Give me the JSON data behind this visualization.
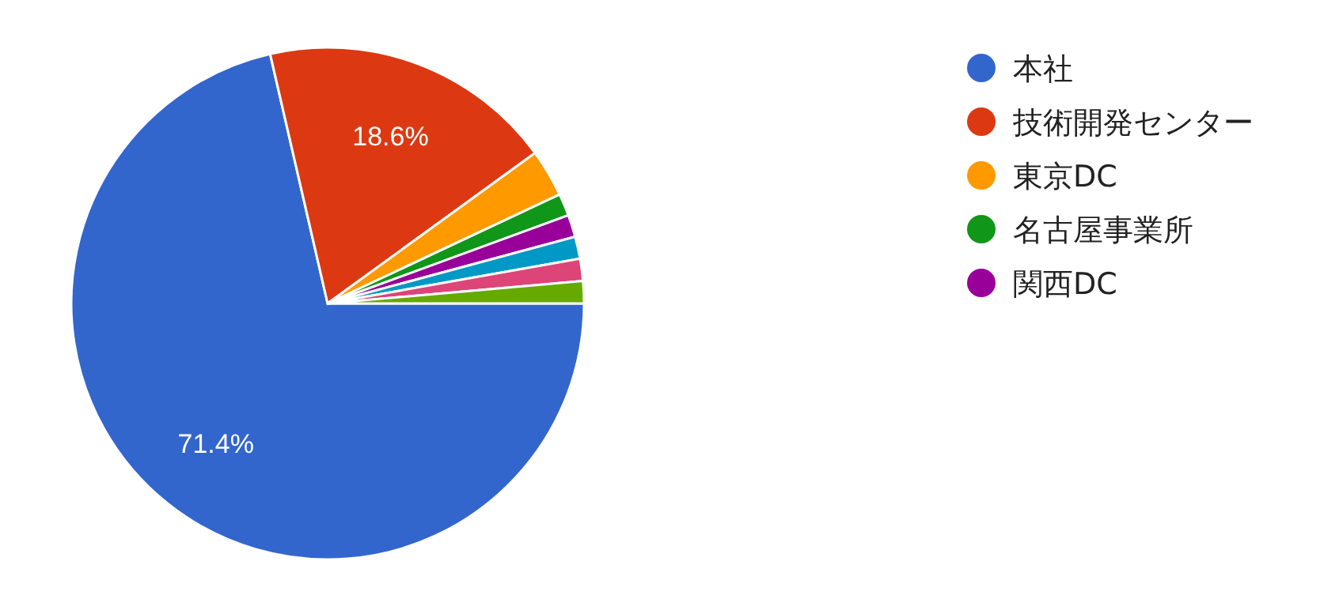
{
  "chart_data": {
    "type": "pie",
    "categories": [
      "本社",
      "技術開発センター",
      "東京DC",
      "名古屋事業所",
      "関西DC",
      null,
      null,
      null
    ],
    "values": [
      71.4,
      18.6,
      3.0,
      1.4,
      1.4,
      1.4,
      1.4,
      1.4
    ],
    "colors": [
      "#3366cc",
      "#dc3912",
      "#ff9900",
      "#109618",
      "#990099",
      "#0099c6",
      "#dd4477",
      "#66aa00"
    ],
    "value_labels": [
      "71.4%",
      "18.6%",
      null,
      null,
      null,
      null,
      null,
      null
    ],
    "legend": "right"
  }
}
